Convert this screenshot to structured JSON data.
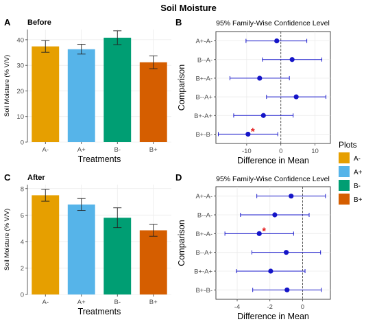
{
  "figure_title": "Soil Moisture",
  "legend": {
    "title": "Plots",
    "items": [
      {
        "label": "A-",
        "color": "#E69F00"
      },
      {
        "label": "A+",
        "color": "#56B4E9"
      },
      {
        "label": "B-",
        "color": "#009E73"
      },
      {
        "label": "B+",
        "color": "#D55E00"
      }
    ]
  },
  "chart_data": [
    {
      "panel": "A",
      "type": "bar",
      "subtitle": "Before",
      "xlabel": "Treatments",
      "ylabel": "Soil Moisture (% V/V)",
      "categories": [
        "A-",
        "A+",
        "B-",
        "B+"
      ],
      "values": [
        37.4,
        36.3,
        40.8,
        31.2
      ],
      "error": [
        2.3,
        1.9,
        2.7,
        2.5
      ],
      "ylim": [
        0,
        44
      ],
      "yticks": [
        0,
        10,
        20,
        30,
        40
      ],
      "grid": true
    },
    {
      "panel": "B",
      "type": "scatter",
      "title": "95% Family-Wise Confidence Level",
      "xlabel": "Difference in Mean",
      "ylabel": "Comparison",
      "categories": [
        "A+-A-",
        "B--A-",
        "B+-A-",
        "B--A+",
        "B+-A+",
        "B+-B-"
      ],
      "estimate": [
        -1.2,
        3.3,
        -6.2,
        4.5,
        -5.1,
        -9.6
      ],
      "lower": [
        -10.2,
        -5.4,
        -14.9,
        -4.2,
        -13.8,
        -18.3
      ],
      "upper": [
        7.6,
        12.0,
        2.5,
        13.2,
        3.6,
        -0.9
      ],
      "significant": [
        false,
        false,
        false,
        false,
        false,
        true
      ],
      "significance_mark": "*",
      "xlim": [
        -19,
        14.5
      ],
      "xticks": [
        -10,
        0,
        10
      ],
      "reference_line": 0,
      "grid": true
    },
    {
      "panel": "C",
      "type": "bar",
      "subtitle": "After",
      "xlabel": "Treatments",
      "ylabel": "Soil Moisture (% V/V)",
      "categories": [
        "A-",
        "A+",
        "B-",
        "B+"
      ],
      "values": [
        7.5,
        6.8,
        5.8,
        4.85
      ],
      "error": [
        0.45,
        0.45,
        0.75,
        0.45
      ],
      "ylim": [
        0,
        8.3
      ],
      "yticks": [
        0,
        2,
        4,
        6,
        8
      ],
      "grid": true
    },
    {
      "panel": "D",
      "type": "scatter",
      "title": "95% Family-Wise Confidence Level",
      "xlabel": "Difference in Mean",
      "ylabel": "Comparison",
      "categories": [
        "A+-A-",
        "B--A-",
        "B+-A-",
        "B--A+",
        "B+-A+",
        "B+-B-"
      ],
      "estimate": [
        -0.7,
        -1.7,
        -2.65,
        -1.0,
        -1.95,
        -0.95
      ],
      "lower": [
        -2.8,
        -3.8,
        -4.75,
        -3.1,
        -4.05,
        -3.05
      ],
      "upper": [
        1.4,
        0.4,
        -0.55,
        1.1,
        0.15,
        1.15
      ],
      "significant": [
        false,
        false,
        true,
        false,
        false,
        false
      ],
      "significance_mark": "*",
      "xlim": [
        -5.3,
        1.7
      ],
      "xticks": [
        -4,
        -2,
        0
      ],
      "reference_line": 0,
      "grid": true
    }
  ]
}
